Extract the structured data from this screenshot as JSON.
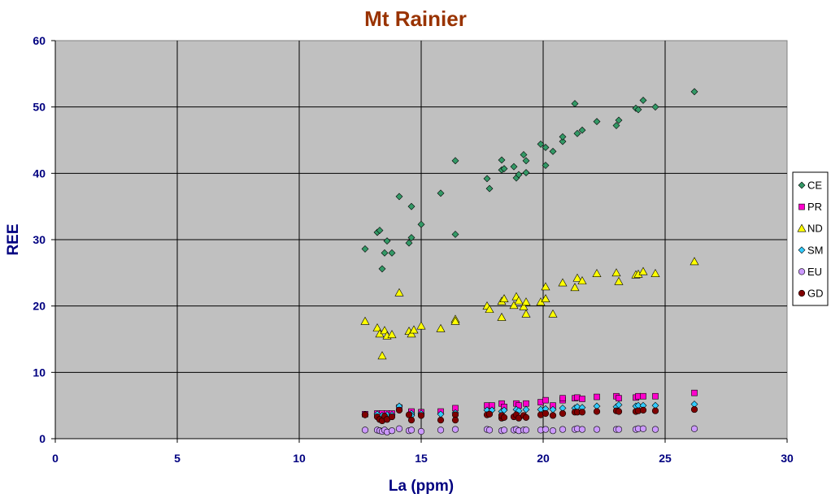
{
  "chart_data": {
    "type": "scatter",
    "title": "Mt Rainier",
    "xlabel": "La (ppm)",
    "ylabel": "REE",
    "xlim": [
      0,
      30
    ],
    "ylim": [
      0,
      60
    ],
    "x_ticks": [
      "0",
      "5",
      "10",
      "15",
      "20",
      "25",
      "30"
    ],
    "y_ticks": [
      "0",
      "10",
      "20",
      "30",
      "40",
      "50",
      "60"
    ],
    "grid": true,
    "plot_background": "#c0c0c0",
    "legend_position": "right",
    "series": [
      {
        "name": "CE",
        "marker": "diamond",
        "color": "#339966",
        "points": [
          [
            12.7,
            28.6
          ],
          [
            13.2,
            31.1
          ],
          [
            13.3,
            31.4
          ],
          [
            13.4,
            25.6
          ],
          [
            13.5,
            28.0
          ],
          [
            13.6,
            29.8
          ],
          [
            13.8,
            28.0
          ],
          [
            14.1,
            36.5
          ],
          [
            14.5,
            29.5
          ],
          [
            14.6,
            30.3
          ],
          [
            14.6,
            35.0
          ],
          [
            15.0,
            32.3
          ],
          [
            15.8,
            37.0
          ],
          [
            16.4,
            41.9
          ],
          [
            16.4,
            30.8
          ],
          [
            17.7,
            39.2
          ],
          [
            17.8,
            37.7
          ],
          [
            18.3,
            42.0
          ],
          [
            18.3,
            40.5
          ],
          [
            18.4,
            40.7
          ],
          [
            18.8,
            41.0
          ],
          [
            18.9,
            39.3
          ],
          [
            19.0,
            39.8
          ],
          [
            19.2,
            42.8
          ],
          [
            19.3,
            40.1
          ],
          [
            19.3,
            41.9
          ],
          [
            19.9,
            44.4
          ],
          [
            20.1,
            43.9
          ],
          [
            20.1,
            41.2
          ],
          [
            20.4,
            43.3
          ],
          [
            20.8,
            44.8
          ],
          [
            20.8,
            45.5
          ],
          [
            21.3,
            50.5
          ],
          [
            21.4,
            46.0
          ],
          [
            21.6,
            46.5
          ],
          [
            22.2,
            47.8
          ],
          [
            23.0,
            47.2
          ],
          [
            23.1,
            48.0
          ],
          [
            23.8,
            49.8
          ],
          [
            23.9,
            49.6
          ],
          [
            24.1,
            51.0
          ],
          [
            24.6,
            50.0
          ],
          [
            26.2,
            52.3
          ]
        ]
      },
      {
        "name": "PR",
        "marker": "square",
        "color": "#ff00cc",
        "points": [
          [
            12.7,
            3.7
          ],
          [
            13.2,
            3.8
          ],
          [
            13.4,
            3.8
          ],
          [
            13.6,
            3.8
          ],
          [
            13.8,
            3.8
          ],
          [
            14.1,
            4.7
          ],
          [
            14.6,
            4.0
          ],
          [
            14.6,
            4.1
          ],
          [
            15.0,
            4.0
          ],
          [
            15.8,
            4.1
          ],
          [
            16.4,
            4.6
          ],
          [
            17.7,
            5.0
          ],
          [
            17.9,
            5.0
          ],
          [
            18.3,
            5.3
          ],
          [
            18.4,
            4.8
          ],
          [
            18.9,
            5.3
          ],
          [
            19.0,
            5.0
          ],
          [
            19.3,
            5.3
          ],
          [
            19.9,
            5.5
          ],
          [
            20.1,
            5.8
          ],
          [
            20.4,
            5.0
          ],
          [
            20.8,
            5.8
          ],
          [
            20.8,
            6.1
          ],
          [
            21.3,
            6.1
          ],
          [
            21.4,
            6.2
          ],
          [
            21.6,
            6.0
          ],
          [
            22.2,
            6.3
          ],
          [
            23.0,
            6.4
          ],
          [
            23.1,
            6.1
          ],
          [
            23.8,
            6.2
          ],
          [
            23.9,
            6.4
          ],
          [
            24.1,
            6.4
          ],
          [
            24.6,
            6.4
          ],
          [
            26.2,
            6.9
          ]
        ]
      },
      {
        "name": "ND",
        "marker": "triangle",
        "color": "#ffff00",
        "points": [
          [
            12.7,
            17.7
          ],
          [
            13.2,
            16.7
          ],
          [
            13.3,
            15.8
          ],
          [
            13.4,
            12.5
          ],
          [
            13.5,
            16.3
          ],
          [
            13.6,
            15.5
          ],
          [
            13.8,
            15.7
          ],
          [
            14.1,
            22.0
          ],
          [
            14.5,
            16.2
          ],
          [
            14.6,
            15.8
          ],
          [
            14.7,
            16.4
          ],
          [
            15.0,
            17.0
          ],
          [
            15.8,
            16.6
          ],
          [
            16.4,
            18.0
          ],
          [
            16.4,
            17.7
          ],
          [
            17.7,
            20.0
          ],
          [
            17.8,
            19.5
          ],
          [
            18.3,
            18.3
          ],
          [
            18.3,
            20.7
          ],
          [
            18.4,
            21.1
          ],
          [
            18.8,
            20.1
          ],
          [
            18.9,
            21.4
          ],
          [
            19.0,
            20.8
          ],
          [
            19.2,
            19.9
          ],
          [
            19.3,
            20.6
          ],
          [
            19.3,
            18.8
          ],
          [
            19.9,
            20.6
          ],
          [
            20.1,
            22.9
          ],
          [
            20.1,
            21.1
          ],
          [
            20.4,
            18.8
          ],
          [
            20.8,
            23.5
          ],
          [
            21.3,
            22.8
          ],
          [
            21.4,
            24.2
          ],
          [
            21.6,
            23.8
          ],
          [
            22.2,
            24.9
          ],
          [
            23.0,
            25.0
          ],
          [
            23.1,
            23.7
          ],
          [
            23.8,
            24.7
          ],
          [
            23.9,
            24.8
          ],
          [
            24.1,
            25.2
          ],
          [
            24.6,
            24.9
          ],
          [
            26.2,
            26.7
          ]
        ]
      },
      {
        "name": "SM",
        "marker": "diamond",
        "color": "#33ccff",
        "points": [
          [
            12.7,
            3.6
          ],
          [
            13.2,
            3.7
          ],
          [
            13.4,
            3.5
          ],
          [
            13.6,
            3.6
          ],
          [
            13.8,
            3.6
          ],
          [
            14.1,
            4.9
          ],
          [
            14.6,
            3.8
          ],
          [
            14.6,
            3.5
          ],
          [
            15.0,
            3.8
          ],
          [
            15.8,
            3.7
          ],
          [
            16.4,
            3.9
          ],
          [
            17.7,
            4.3
          ],
          [
            17.9,
            4.3
          ],
          [
            18.3,
            4.1
          ],
          [
            18.4,
            4.3
          ],
          [
            18.9,
            4.4
          ],
          [
            19.0,
            4.2
          ],
          [
            19.3,
            4.4
          ],
          [
            19.9,
            4.4
          ],
          [
            20.1,
            4.5
          ],
          [
            20.4,
            4.4
          ],
          [
            20.8,
            4.6
          ],
          [
            21.3,
            4.6
          ],
          [
            21.4,
            4.8
          ],
          [
            21.6,
            4.7
          ],
          [
            22.2,
            4.9
          ],
          [
            23.0,
            4.8
          ],
          [
            23.1,
            5.1
          ],
          [
            23.8,
            4.9
          ],
          [
            23.9,
            5.0
          ],
          [
            24.1,
            5.0
          ],
          [
            24.6,
            5.0
          ],
          [
            26.2,
            5.2
          ]
        ]
      },
      {
        "name": "EU",
        "marker": "circle",
        "color": "#cc99ff",
        "points": [
          [
            12.7,
            1.3
          ],
          [
            13.2,
            1.3
          ],
          [
            13.3,
            1.2
          ],
          [
            13.4,
            1.1
          ],
          [
            13.5,
            1.3
          ],
          [
            13.6,
            1.0
          ],
          [
            13.8,
            1.2
          ],
          [
            14.1,
            1.5
          ],
          [
            14.5,
            1.2
          ],
          [
            14.6,
            1.3
          ],
          [
            15.0,
            1.1
          ],
          [
            15.8,
            1.3
          ],
          [
            16.4,
            1.4
          ],
          [
            17.7,
            1.4
          ],
          [
            17.8,
            1.3
          ],
          [
            18.3,
            1.2
          ],
          [
            18.4,
            1.3
          ],
          [
            18.8,
            1.3
          ],
          [
            18.9,
            1.4
          ],
          [
            19.0,
            1.2
          ],
          [
            19.2,
            1.3
          ],
          [
            19.3,
            1.3
          ],
          [
            19.9,
            1.3
          ],
          [
            20.1,
            1.4
          ],
          [
            20.4,
            1.2
          ],
          [
            20.8,
            1.4
          ],
          [
            21.3,
            1.4
          ],
          [
            21.4,
            1.5
          ],
          [
            21.6,
            1.4
          ],
          [
            22.2,
            1.4
          ],
          [
            23.0,
            1.4
          ],
          [
            23.1,
            1.4
          ],
          [
            23.8,
            1.4
          ],
          [
            23.9,
            1.5
          ],
          [
            24.1,
            1.5
          ],
          [
            24.6,
            1.4
          ],
          [
            26.2,
            1.5
          ]
        ]
      },
      {
        "name": "GD",
        "marker": "circle",
        "color": "#800000",
        "points": [
          [
            12.7,
            3.6
          ],
          [
            13.2,
            3.3
          ],
          [
            13.3,
            2.9
          ],
          [
            13.4,
            2.7
          ],
          [
            13.5,
            3.4
          ],
          [
            13.6,
            2.9
          ],
          [
            13.8,
            3.3
          ],
          [
            14.1,
            4.3
          ],
          [
            14.5,
            3.6
          ],
          [
            14.6,
            2.8
          ],
          [
            15.0,
            3.5
          ],
          [
            15.8,
            2.8
          ],
          [
            16.4,
            3.6
          ],
          [
            16.4,
            2.8
          ],
          [
            17.7,
            3.6
          ],
          [
            17.8,
            3.7
          ],
          [
            18.3,
            3.1
          ],
          [
            18.3,
            3.5
          ],
          [
            18.4,
            3.2
          ],
          [
            18.8,
            3.3
          ],
          [
            18.9,
            3.6
          ],
          [
            19.0,
            3.1
          ],
          [
            19.2,
            3.5
          ],
          [
            19.3,
            3.2
          ],
          [
            19.9,
            3.6
          ],
          [
            20.1,
            3.8
          ],
          [
            20.4,
            3.5
          ],
          [
            20.8,
            3.8
          ],
          [
            21.3,
            4.0
          ],
          [
            21.4,
            4.0
          ],
          [
            21.6,
            4.0
          ],
          [
            22.2,
            4.1
          ],
          [
            23.0,
            4.2
          ],
          [
            23.1,
            4.1
          ],
          [
            23.8,
            4.1
          ],
          [
            23.9,
            4.2
          ],
          [
            24.1,
            4.3
          ],
          [
            24.6,
            4.2
          ],
          [
            26.2,
            4.4
          ]
        ]
      }
    ]
  }
}
